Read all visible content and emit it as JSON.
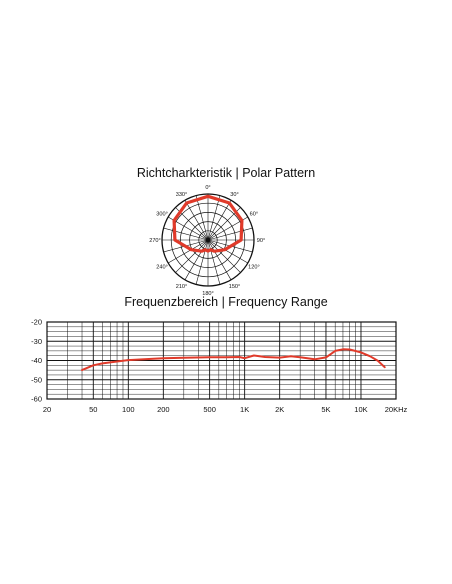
{
  "chart_data": [
    {
      "type": "polar",
      "title": "Richtcharkteristik | Polar Pattern",
      "angle_labels": [
        "0°",
        "30°",
        "60°",
        "90°",
        "120°",
        "150°",
        "180°",
        "210°",
        "240°",
        "270°",
        "300°",
        "330°"
      ],
      "series": [
        {
          "color": "#e03a2a",
          "angles_deg": [
            0,
            30,
            60,
            90,
            120,
            150,
            165,
            180,
            195,
            210,
            240,
            270,
            300,
            330
          ],
          "radius_fraction": [
            0.95,
            0.93,
            0.85,
            0.72,
            0.42,
            0.28,
            0.22,
            0.24,
            0.22,
            0.28,
            0.42,
            0.72,
            0.85,
            0.93
          ]
        }
      ]
    },
    {
      "type": "line",
      "title": "Frequenzbereich | Frequency Range",
      "xscale": "log",
      "xlim": [
        20,
        20000
      ],
      "ylim": [
        -60,
        -20
      ],
      "x_ticks": [
        {
          "value": 20,
          "label": "20"
        },
        {
          "value": 50,
          "label": "50"
        },
        {
          "value": 100,
          "label": "100"
        },
        {
          "value": 200,
          "label": "200"
        },
        {
          "value": 500,
          "label": "500"
        },
        {
          "value": 1000,
          "label": "1K"
        },
        {
          "value": 2000,
          "label": "2K"
        },
        {
          "value": 5000,
          "label": "5K"
        },
        {
          "value": 10000,
          "label": "10K"
        },
        {
          "value": 20000,
          "label": "20KHz"
        }
      ],
      "y_ticks": [
        {
          "value": -20,
          "label": "-20"
        },
        {
          "value": -30,
          "label": "-30"
        },
        {
          "value": -40,
          "label": "-40"
        },
        {
          "value": -50,
          "label": "-50"
        },
        {
          "value": -60,
          "label": "-60"
        }
      ],
      "grid": true,
      "series": [
        {
          "color": "#e03a2a",
          "x": [
            40,
            50,
            60,
            80,
            100,
            150,
            200,
            300,
            500,
            700,
            900,
            1000,
            1200,
            1500,
            2000,
            2500,
            3000,
            4000,
            5000,
            6000,
            7000,
            8000,
            10000,
            12000,
            14000,
            16000
          ],
          "y": [
            -45,
            -42.5,
            -41.5,
            -40.5,
            -39.8,
            -39.2,
            -38.8,
            -38.6,
            -38.3,
            -38.3,
            -38.2,
            -38.8,
            -37.4,
            -38.2,
            -38.5,
            -37.8,
            -38.3,
            -39.4,
            -38.4,
            -35,
            -34.2,
            -34.3,
            -35.8,
            -37.8,
            -40.2,
            -43.5
          ]
        }
      ]
    }
  ]
}
